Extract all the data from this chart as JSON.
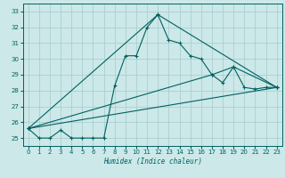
{
  "xlabel": "Humidex (Indice chaleur)",
  "bg_color": "#cce8e8",
  "grid_color": "#aacfcf",
  "line_color": "#006060",
  "xlim": [
    -0.5,
    23.5
  ],
  "ylim": [
    24.5,
    33.5
  ],
  "xticks": [
    0,
    1,
    2,
    3,
    4,
    5,
    6,
    7,
    8,
    9,
    10,
    11,
    12,
    13,
    14,
    15,
    16,
    17,
    18,
    19,
    20,
    21,
    22,
    23
  ],
  "yticks": [
    25,
    26,
    27,
    28,
    29,
    30,
    31,
    32,
    33
  ],
  "series1_x": [
    0,
    1,
    2,
    3,
    4,
    5,
    6,
    7,
    8,
    9,
    10,
    11,
    12,
    13,
    14,
    15,
    16,
    17,
    18,
    19,
    20,
    21,
    22,
    23
  ],
  "series1_y": [
    25.6,
    25.0,
    25.0,
    25.5,
    25.0,
    25.0,
    25.0,
    25.0,
    28.3,
    30.2,
    30.2,
    32.0,
    32.8,
    31.2,
    31.0,
    30.2,
    30.0,
    29.0,
    28.5,
    29.5,
    28.2,
    28.1,
    28.2,
    28.2
  ],
  "series2_x": [
    0,
    12,
    23
  ],
  "series2_y": [
    25.6,
    32.8,
    28.2
  ],
  "series3_x": [
    0,
    17,
    19,
    23
  ],
  "series3_y": [
    25.6,
    29.0,
    29.5,
    28.2
  ],
  "series4_x": [
    0,
    23
  ],
  "series4_y": [
    25.6,
    28.2
  ]
}
